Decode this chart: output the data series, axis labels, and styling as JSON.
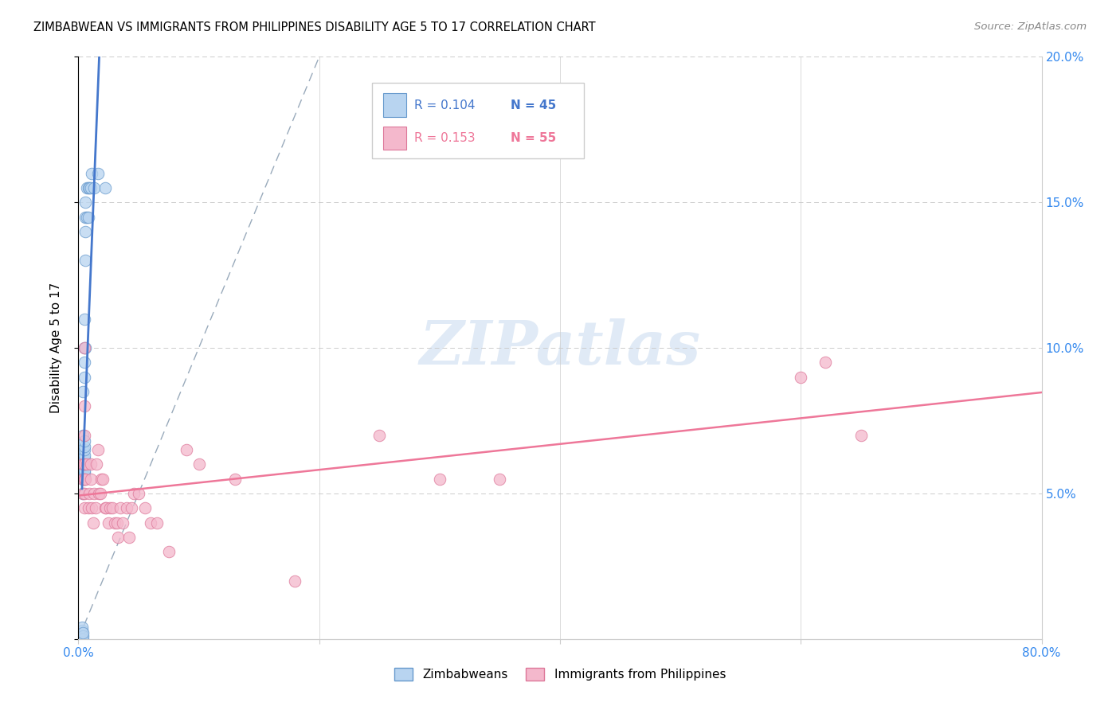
{
  "title": "ZIMBABWEAN VS IMMIGRANTS FROM PHILIPPINES DISABILITY AGE 5 TO 17 CORRELATION CHART",
  "source": "Source: ZipAtlas.com",
  "ylabel": "Disability Age 5 to 17",
  "xlim": [
    0.0,
    0.8
  ],
  "ylim": [
    0.0,
    0.2
  ],
  "legend_label1": "Zimbabweans",
  "legend_label2": "Immigrants from Philippines",
  "legend_R1": "R = 0.104",
  "legend_N1": "N = 45",
  "legend_R2": "R = 0.153",
  "legend_N2": "N = 55",
  "color_blue_fill": "#b8d4f0",
  "color_blue_edge": "#6699cc",
  "color_pink_fill": "#f4b8cc",
  "color_pink_edge": "#dd7799",
  "color_blue_line": "#4477cc",
  "color_pink_line": "#ee7799",
  "color_dashed": "#99aabb",
  "color_grid": "#cccccc",
  "watermark": "ZIPatlas",
  "zimbabwe_x": [
    0.003,
    0.003,
    0.003,
    0.003,
    0.003,
    0.004,
    0.004,
    0.004,
    0.004,
    0.004,
    0.004,
    0.004,
    0.004,
    0.004,
    0.004,
    0.004,
    0.005,
    0.005,
    0.005,
    0.005,
    0.005,
    0.005,
    0.005,
    0.005,
    0.005,
    0.005,
    0.005,
    0.005,
    0.005,
    0.005,
    0.006,
    0.006,
    0.006,
    0.006,
    0.006,
    0.007,
    0.007,
    0.008,
    0.008,
    0.009,
    0.01,
    0.011,
    0.013,
    0.016,
    0.022
  ],
  "zimbabwe_y": [
    0.0,
    0.001,
    0.002,
    0.003,
    0.004,
    0.0,
    0.001,
    0.002,
    0.05,
    0.055,
    0.057,
    0.06,
    0.062,
    0.065,
    0.07,
    0.085,
    0.055,
    0.056,
    0.057,
    0.058,
    0.06,
    0.062,
    0.063,
    0.065,
    0.066,
    0.068,
    0.09,
    0.095,
    0.1,
    0.11,
    0.1,
    0.13,
    0.14,
    0.145,
    0.15,
    0.145,
    0.155,
    0.145,
    0.155,
    0.155,
    0.155,
    0.16,
    0.155,
    0.16,
    0.155
  ],
  "philippines_x": [
    0.004,
    0.004,
    0.004,
    0.005,
    0.005,
    0.005,
    0.005,
    0.005,
    0.005,
    0.005,
    0.006,
    0.007,
    0.008,
    0.009,
    0.01,
    0.01,
    0.011,
    0.012,
    0.013,
    0.014,
    0.015,
    0.016,
    0.017,
    0.018,
    0.019,
    0.02,
    0.022,
    0.023,
    0.025,
    0.026,
    0.028,
    0.03,
    0.032,
    0.033,
    0.035,
    0.037,
    0.04,
    0.042,
    0.044,
    0.046,
    0.05,
    0.055,
    0.06,
    0.065,
    0.075,
    0.09,
    0.1,
    0.13,
    0.18,
    0.25,
    0.3,
    0.35,
    0.6,
    0.62,
    0.65
  ],
  "philippines_y": [
    0.05,
    0.055,
    0.06,
    0.045,
    0.05,
    0.055,
    0.06,
    0.07,
    0.08,
    0.1,
    0.055,
    0.06,
    0.045,
    0.05,
    0.055,
    0.06,
    0.045,
    0.04,
    0.05,
    0.045,
    0.06,
    0.065,
    0.05,
    0.05,
    0.055,
    0.055,
    0.045,
    0.045,
    0.04,
    0.045,
    0.045,
    0.04,
    0.04,
    0.035,
    0.045,
    0.04,
    0.045,
    0.035,
    0.045,
    0.05,
    0.05,
    0.045,
    0.04,
    0.04,
    0.03,
    0.065,
    0.06,
    0.055,
    0.02,
    0.07,
    0.055,
    0.055,
    0.09,
    0.095,
    0.07
  ]
}
